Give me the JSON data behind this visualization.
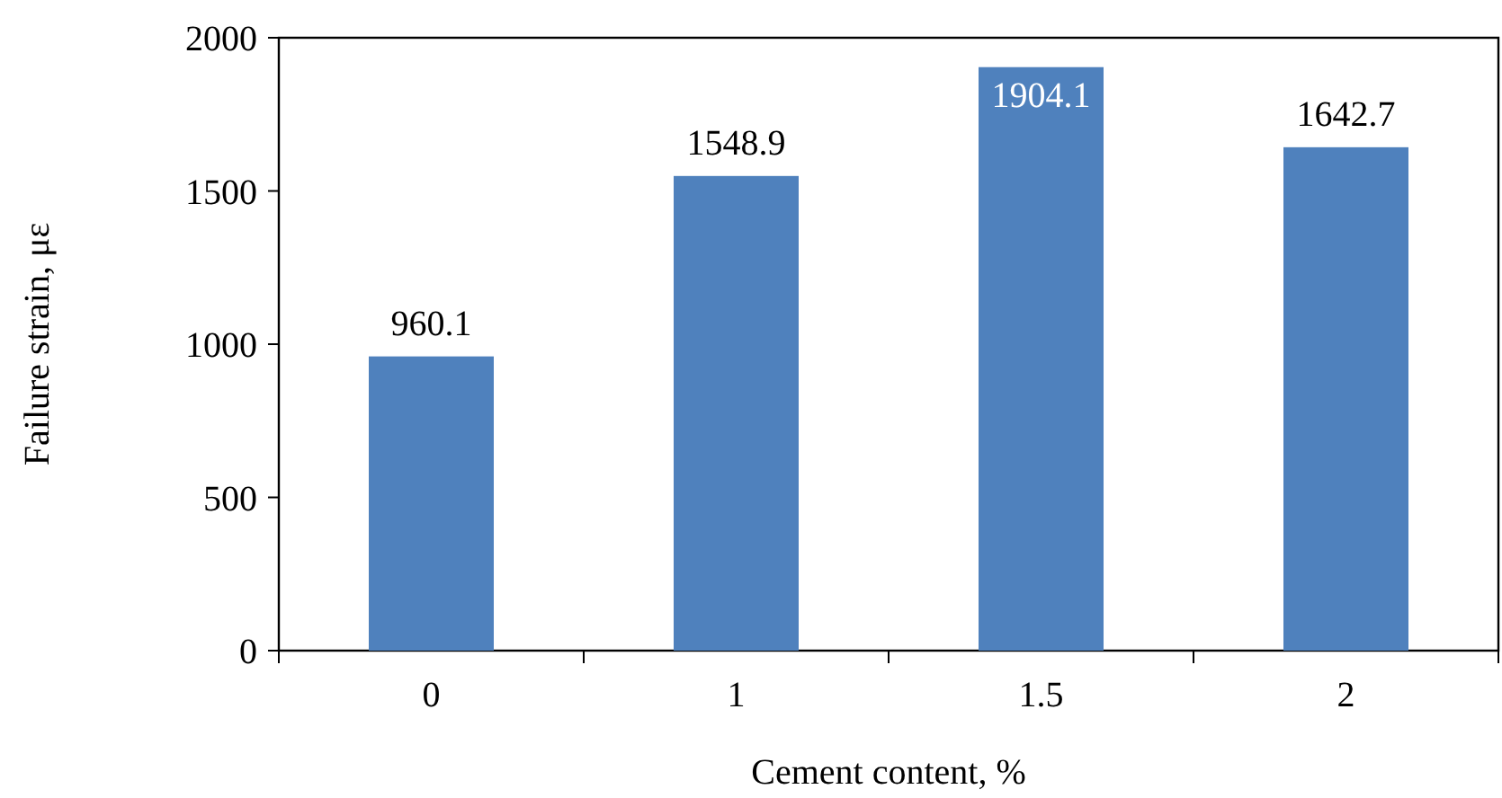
{
  "chart_data": {
    "type": "bar",
    "xlabel": "Cement content, %",
    "ylabel": "Failure strain, με",
    "categories": [
      "0",
      "1",
      "1.5",
      "2"
    ],
    "values": [
      960.1,
      1548.9,
      1904.1,
      1642.7
    ],
    "color": "#4f81bd",
    "ylim": [
      0,
      2000
    ],
    "yticks": [
      0,
      500,
      1000,
      1500,
      2000
    ],
    "data_labels": true,
    "grid": false
  }
}
